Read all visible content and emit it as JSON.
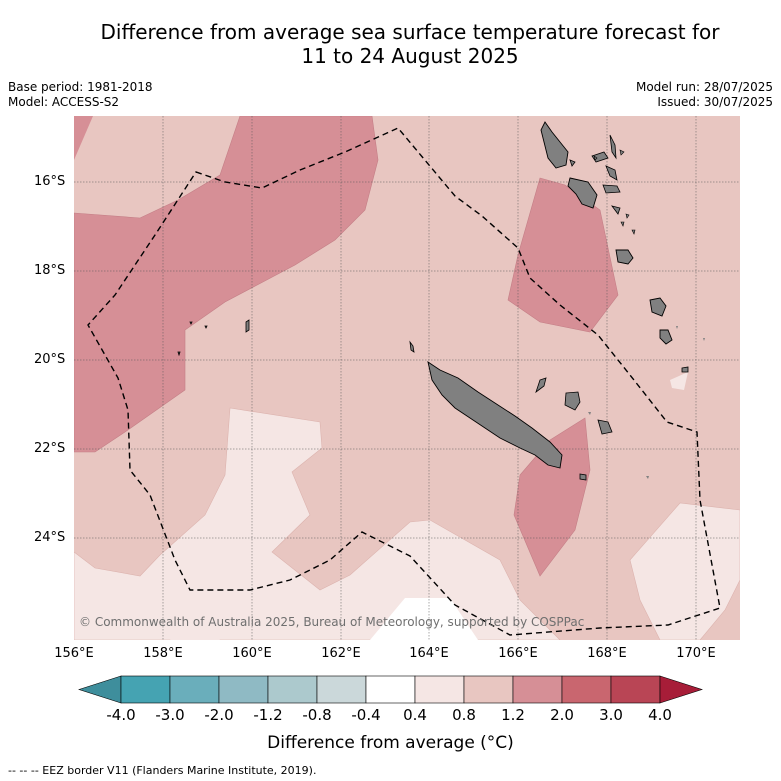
{
  "title_line1": "Difference from average sea surface temperature forecast for",
  "title_line2": "11 to 24 August 2025",
  "meta_left": [
    "Base period: 1981-2018",
    "Model: ACCESS-S2"
  ],
  "meta_right": [
    "Model run: 28/07/2025",
    "Issued: 30/07/2025"
  ],
  "lat_labels": [
    "16°S",
    "18°S",
    "20°S",
    "22°S",
    "24°S"
  ],
  "lon_labels": [
    "156°E",
    "158°E",
    "160°E",
    "162°E",
    "164°E",
    "166°E",
    "168°E",
    "170°E"
  ],
  "copyright": "© Commonwealth of Australia 2025, Bureau of Meteorology, supported by COSPPac",
  "colorbar": {
    "ticks": [
      "-4.0",
      "-3.0",
      "-2.0",
      "-1.2",
      "-0.8",
      "-0.4",
      "0.4",
      "0.8",
      "1.2",
      "2.0",
      "3.0",
      "4.0"
    ],
    "colors": [
      "#3e8e9c",
      "#45a3b2",
      "#6aaebb",
      "#8fbac4",
      "#acc9cd",
      "#cbd8da",
      "#ffffff",
      "#f5e6e4",
      "#e8c6c1",
      "#d68f96",
      "#c9666f",
      "#b94555",
      "#a71d38"
    ],
    "title": "Difference from average (°C)"
  },
  "footnote": "-- -- -- EEZ border V11 (Flanders Marine Institute, 2019).",
  "colors": {
    "land": "#808080",
    "warm_0_4_0_8": "#f5e6e4",
    "warm_0_8_1_2": "#e8c6c1",
    "warm_1_2_2_0": "#d68f96"
  }
}
